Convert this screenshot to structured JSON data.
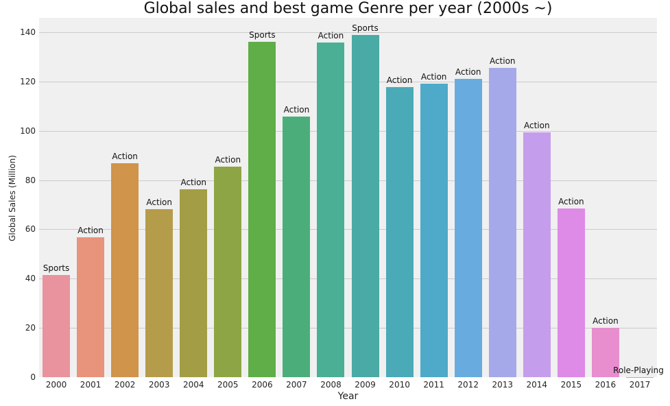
{
  "chart_data": {
    "type": "bar",
    "title": "Global sales and best game Genre per year (2000s ~)",
    "xlabel": "Year",
    "ylabel": "Global Sales (Million)",
    "ylim": [
      0,
      146
    ],
    "yticks": [
      0,
      20,
      40,
      60,
      80,
      100,
      120,
      140
    ],
    "grid": true,
    "categories": [
      "2000",
      "2001",
      "2002",
      "2003",
      "2004",
      "2005",
      "2006",
      "2007",
      "2008",
      "2009",
      "2010",
      "2011",
      "2012",
      "2013",
      "2014",
      "2015",
      "2016",
      "2017"
    ],
    "values": [
      41.5,
      56.8,
      86.8,
      68.2,
      76.3,
      85.4,
      136.1,
      105.8,
      135.8,
      138.9,
      117.7,
      119.1,
      121.1,
      125.5,
      99.4,
      68.5,
      20.0,
      0.05
    ],
    "annotations": [
      "Sports",
      "Action",
      "Action",
      "Action",
      "Action",
      "Action",
      "Sports",
      "Action",
      "Action",
      "Sports",
      "Action",
      "Action",
      "Action",
      "Action",
      "Action",
      "Action",
      "Action",
      "Role-Playing"
    ],
    "colors": [
      "#e8939d",
      "#e8937b",
      "#d0944b",
      "#b59c4b",
      "#a39e45",
      "#8ea545",
      "#5fae48",
      "#4bae7a",
      "#4baf96",
      "#4aaaa5",
      "#4aaab8",
      "#4eaac8",
      "#68acdf",
      "#a6a9e9",
      "#c59ded",
      "#de8ae7",
      "#e88ecf",
      "#e88ecf"
    ],
    "background": "#f0f0f0"
  }
}
